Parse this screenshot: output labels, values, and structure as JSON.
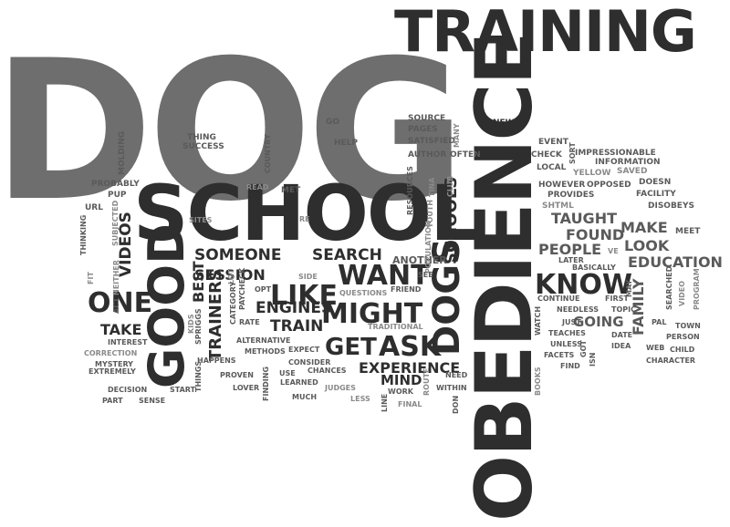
{
  "words": {
    "dog": "DOG",
    "training": "TRAINING",
    "obedience": "OBEDIENCE",
    "school": "SCHOOL",
    "good": "GOOD",
    "dogs": "DOGS",
    "schools": "SCHOOLS",
    "might": "MIGHT",
    "want": "WANT",
    "like": "LIKE",
    "know": "KNOW",
    "one": "ONE",
    "get": "GET",
    "ask": "ASK",
    "search": "SEARCH",
    "someone": "SOMEONE",
    "session": "SESSION",
    "engines": "ENGINES",
    "train": "TRAIN",
    "videos": "VIDEOS",
    "trainers": "TRAINERS",
    "best": "BEST",
    "take": "TAKE",
    "experience": "EXPERIENCE",
    "mind": "MIND",
    "taught": "TAUGHT",
    "found": "FOUND",
    "people": "PEOPLE",
    "look": "LOOK",
    "make": "MAKE",
    "education": "EDUCATION",
    "family": "FAMILY",
    "going": "GOING",
    "another": "ANOTHER",
    "thing": "THING",
    "success": "SUCCESS",
    "go": "GO",
    "help": "HELP",
    "source": "SOURCE",
    "pages": "PAGES",
    "satisfied": "SATISFIED",
    "author": "AUTHOR",
    "many": "MANY",
    "often": "OFTEN",
    "new": "NEW",
    "event": "EVENT",
    "check": "CHECK",
    "sort": "SORT",
    "local": "LOCAL",
    "yellow": "YELLOW",
    "saved": "SAVED",
    "however": "HOWEVER",
    "opposed": "OPPOSED",
    "doesn": "DOESN",
    "provides": "PROVIDES",
    "impressionable": "IMPRESSIONABLE",
    "information": "INFORMATION",
    "shtml": "SHTML",
    "facility": "FACILITY",
    "disobeys": "DISOBEYS",
    "meet": "MEET",
    "molding": "MOLDING",
    "country": "COUNTRY",
    "paycheck": "PAYCHECK",
    "met": "MET",
    "read": "READ",
    "probably": "PROBABLY",
    "pup": "PUP",
    "url": "URL",
    "subjected": "SUBJECTED",
    "sites": "SITES",
    "re": "RE",
    "resources": "RESOURCES",
    "tina": "TINA",
    "club": "CLUB",
    "youth": "YOUTH",
    "population": "POPULATION",
    "thinking": "THINKING",
    "side": "SIDE",
    "opt": "OPT",
    "lot": "LOT",
    "questions": "QUESTIONS",
    "friend": "FRIEND",
    "see": "SEE",
    "traditional": "TRADITIONAL",
    "fit": "FIT",
    "neither": "NEITHER",
    "act": "ACT",
    "kids": "KIDS",
    "spriggs": "SPRIGGS",
    "category": "CATEGORY",
    "rate": "RATE",
    "alternative": "ALTERNATIVE",
    "methods": "METHODS",
    "expect": "EXPECT",
    "interest": "INTEREST",
    "correction": "CORRECTION",
    "mystery": "MYSTERY",
    "extremely": "EXTREMELY",
    "happens": "HAPPENS",
    "proven": "PROVEN",
    "consider": "CONSIDER",
    "use": "USE",
    "chances": "CHANCES",
    "learned": "LEARNED",
    "lover": "LOVER",
    "finding": "FINDING",
    "judges": "JUDGES",
    "much": "MUCH",
    "less": "LESS",
    "decision": "DECISION",
    "part": "PART",
    "sense": "SENSE",
    "start": "START",
    "things": "THINGS",
    "line": "LINE",
    "final": "FINAL",
    "work": "WORK",
    "within": "WITHIN",
    "need": "NEED",
    "route": "ROUTE",
    "don": "DON",
    "ve": "VE",
    "later": "LATER",
    "basically": "BASICALLY",
    "continue": "CONTINUE",
    "needless": "NEEDLESS",
    "teaches": "TEACHES",
    "unless": "UNLESS",
    "facets": "FACETS",
    "find": "FIND",
    "watch": "WATCH",
    "books": "BOOKS",
    "just": "JUST",
    "got": "GOT",
    "isn": "ISN",
    "may": "MAY",
    "first": "FIRST",
    "topic": "TOPIC",
    "date": "DATE",
    "idea": "IDEA",
    "searched": "SEARCHED",
    "program": "PROGRAM",
    "video": "VIDEO",
    "pal": "PAL",
    "town": "TOWN",
    "person": "PERSON",
    "web": "WEB",
    "child": "CHILD",
    "character": "CHARACTER"
  },
  "colors": {
    "dark": "#2e2e2e",
    "medium": "#5a5a5a",
    "light": "#8a8a8a",
    "lighter": "#a8a8a8",
    "background": "#ffffff"
  }
}
